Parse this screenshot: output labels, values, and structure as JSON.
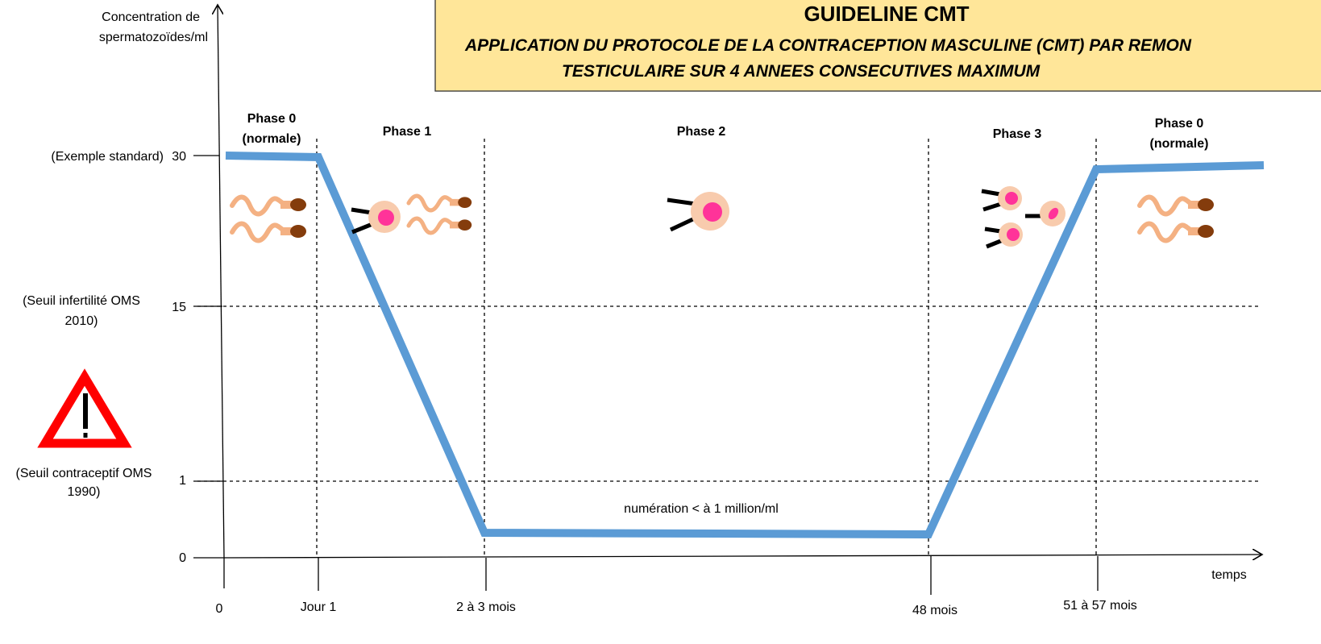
{
  "header": {
    "title": "GUIDELINE CMT",
    "subtitle_lines": [
      "APPLICATION DU PROTOCOLE DE LA CONTRACEPTION MASCULINE (CMT) PAR REMON",
      "TESTICULAIRE SUR 4 ANNEES CONSECUTIVES MAXIMUM"
    ]
  },
  "y_axis": {
    "label_lines": [
      "Concentration de",
      "spermatozoïdes/ml"
    ],
    "ticks": [
      {
        "label": "30",
        "note_lines": [
          "(Exemple standard)"
        ]
      },
      {
        "label": "15",
        "note_lines": [
          "(Seuil infertilité OMS",
          "2010)"
        ]
      },
      {
        "label": "1",
        "note_lines": [
          "(Seuil contraceptif OMS",
          "1990)"
        ]
      },
      {
        "label": "0",
        "note_lines": []
      }
    ]
  },
  "x_axis": {
    "label": "temps",
    "ticks": [
      "0",
      "Jour 1",
      "2 à 3 mois",
      "48 mois",
      "51 à 57 mois"
    ]
  },
  "phases": [
    {
      "lines": [
        "Phase 0",
        "(normale)"
      ]
    },
    {
      "lines": [
        "Phase 1"
      ]
    },
    {
      "lines": [
        "Phase 2"
      ]
    },
    {
      "lines": [
        "Phase 3"
      ]
    },
    {
      "lines": [
        "Phase 0",
        "(normale)"
      ]
    }
  ],
  "annotation": "numération < à 1 million/ml"
}
